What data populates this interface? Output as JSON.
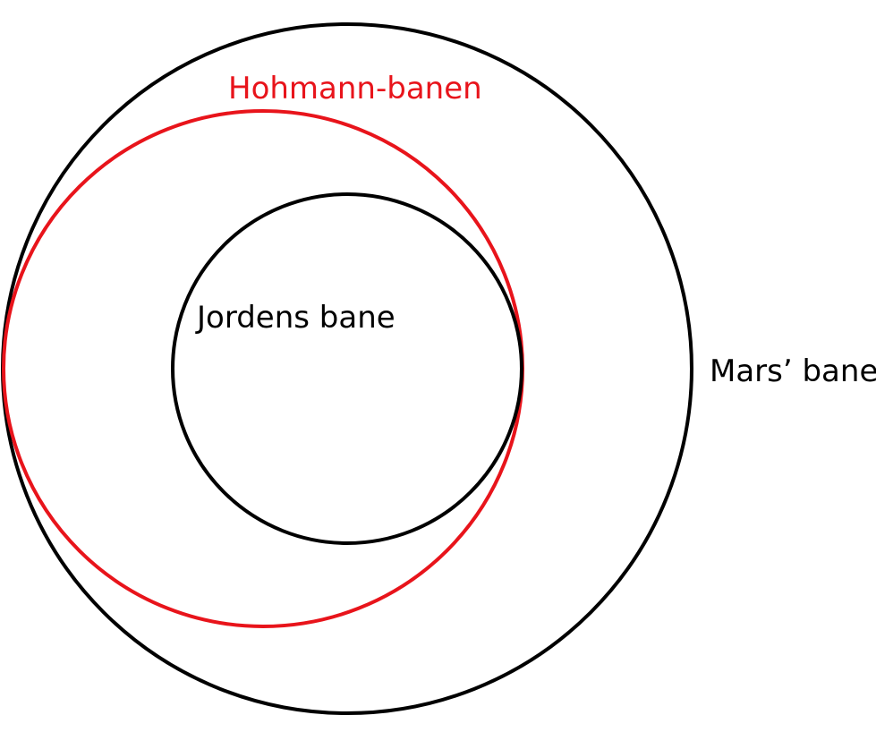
{
  "diagram": {
    "labels": {
      "hohmann": "Hohmann-banen",
      "earth": "Jordens bane",
      "mars": "Mars’ bane"
    },
    "colors": {
      "hohmann": "#e8141b",
      "earth": "#000000",
      "mars": "#000000"
    }
  }
}
